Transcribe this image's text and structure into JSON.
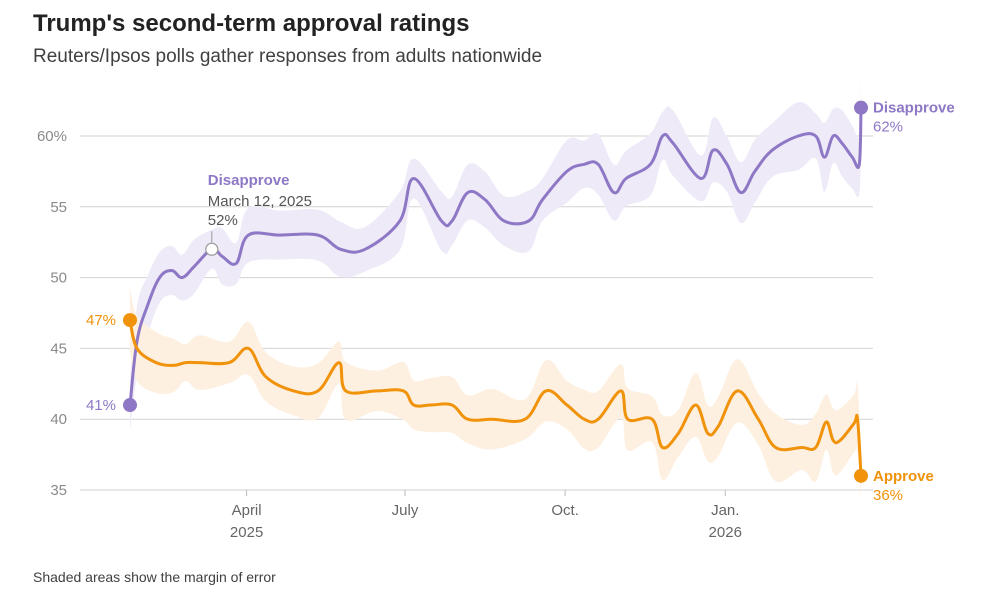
{
  "header": {
    "title": "Trump's second-term approval ratings",
    "subtitle": "Reuters/Ipsos polls gather responses from adults nationwide"
  },
  "footnote": "Shaded areas show the margin of error",
  "chart_data": {
    "type": "line",
    "title": "Trump's second-term approval ratings",
    "subtitle": "Reuters/Ipsos polls gather responses from adults nationwide",
    "x_range": [
      "2025-01-24",
      "2026-03-20"
    ],
    "ylim": [
      35,
      62
    ],
    "y_ticks": [
      {
        "value": 60,
        "label": "60%"
      },
      {
        "value": 55,
        "label": "55"
      },
      {
        "value": 50,
        "label": "50"
      },
      {
        "value": 45,
        "label": "45"
      },
      {
        "value": 40,
        "label": "40"
      },
      {
        "value": 35,
        "label": "35"
      }
    ],
    "x_ticks": [
      {
        "date": "2025-04-01",
        "label": "April",
        "sublabel": "2025"
      },
      {
        "date": "2025-07-01",
        "label": "July",
        "sublabel": ""
      },
      {
        "date": "2025-10-01",
        "label": "Oct.",
        "sublabel": ""
      },
      {
        "date": "2026-01-01",
        "label": "Jan.",
        "sublabel": "2026"
      }
    ],
    "grid": true,
    "legend": "direct labels at line ends",
    "series": [
      {
        "name": "Disapprove",
        "color": "#8E78C6",
        "band_color": "#EEEAF8",
        "points": [
          [
            "2025-01-24",
            41
          ],
          [
            "2025-01-28",
            45.5
          ],
          [
            "2025-02-03",
            48
          ],
          [
            "2025-02-10",
            50
          ],
          [
            "2025-02-17",
            50.5
          ],
          [
            "2025-02-23",
            50
          ],
          [
            "2025-03-02",
            50.8
          ],
          [
            "2025-03-12",
            52
          ],
          [
            "2025-03-18",
            51.5
          ],
          [
            "2025-03-26",
            51
          ],
          [
            "2025-04-02",
            53
          ],
          [
            "2025-04-20",
            53
          ],
          [
            "2025-05-12",
            53
          ],
          [
            "2025-05-25",
            52
          ],
          [
            "2025-06-08",
            52
          ],
          [
            "2025-06-28",
            54
          ],
          [
            "2025-07-06",
            57
          ],
          [
            "2025-07-22",
            54
          ],
          [
            "2025-07-28",
            54
          ],
          [
            "2025-08-06",
            56
          ],
          [
            "2025-08-16",
            55.5
          ],
          [
            "2025-08-27",
            54
          ],
          [
            "2025-09-10",
            54
          ],
          [
            "2025-09-18",
            55.5
          ],
          [
            "2025-10-02",
            57.5
          ],
          [
            "2025-10-12",
            58
          ],
          [
            "2025-10-20",
            58
          ],
          [
            "2025-10-29",
            56
          ],
          [
            "2025-11-05",
            57
          ],
          [
            "2025-11-19",
            58
          ],
          [
            "2025-11-26",
            60
          ],
          [
            "2025-12-02",
            59.5
          ],
          [
            "2025-12-18",
            57
          ],
          [
            "2025-12-25",
            59
          ],
          [
            "2026-01-02",
            58
          ],
          [
            "2026-01-10",
            56
          ],
          [
            "2026-01-18",
            57.5
          ],
          [
            "2026-01-28",
            59
          ],
          [
            "2026-02-12",
            60
          ],
          [
            "2026-02-22",
            60
          ],
          [
            "2026-02-27",
            58.5
          ],
          [
            "2026-03-04",
            60
          ],
          [
            "2026-03-09",
            59.5
          ],
          [
            "2026-03-15",
            58.5
          ],
          [
            "2026-03-19",
            58
          ],
          [
            "2026-03-20",
            62
          ]
        ],
        "annotations": [
          {
            "date": "2025-03-12",
            "value": 52,
            "label": "Disapprove",
            "date_label": "March 12, 2025",
            "value_label": "52%"
          }
        ],
        "start_label": "41%",
        "end_label": "Disapprove",
        "end_value_label": "62%"
      },
      {
        "name": "Approve",
        "color": "#F0920A",
        "band_color": "#FDF0E0",
        "points": [
          [
            "2025-01-24",
            47
          ],
          [
            "2025-01-28",
            45
          ],
          [
            "2025-02-08",
            44
          ],
          [
            "2025-02-18",
            43.8
          ],
          [
            "2025-02-25",
            44
          ],
          [
            "2025-03-05",
            44
          ],
          [
            "2025-03-22",
            44
          ],
          [
            "2025-04-02",
            45
          ],
          [
            "2025-04-12",
            43
          ],
          [
            "2025-04-28",
            42
          ],
          [
            "2025-05-12",
            42
          ],
          [
            "2025-05-24",
            44
          ],
          [
            "2025-05-28",
            42
          ],
          [
            "2025-06-15",
            42
          ],
          [
            "2025-06-30",
            42
          ],
          [
            "2025-07-06",
            41
          ],
          [
            "2025-07-16",
            41
          ],
          [
            "2025-07-28",
            41
          ],
          [
            "2025-08-06",
            40
          ],
          [
            "2025-08-20",
            40
          ],
          [
            "2025-09-08",
            40
          ],
          [
            "2025-09-20",
            42
          ],
          [
            "2025-10-02",
            41
          ],
          [
            "2025-10-12",
            40
          ],
          [
            "2025-10-20",
            40
          ],
          [
            "2025-11-02",
            42
          ],
          [
            "2025-11-06",
            40
          ],
          [
            "2025-11-20",
            40
          ],
          [
            "2025-11-26",
            38
          ],
          [
            "2025-12-05",
            39
          ],
          [
            "2025-12-15",
            41
          ],
          [
            "2025-12-22",
            39
          ],
          [
            "2025-12-28",
            39.5
          ],
          [
            "2026-01-08",
            42
          ],
          [
            "2026-01-20",
            40
          ],
          [
            "2026-01-30",
            38
          ],
          [
            "2026-02-14",
            38
          ],
          [
            "2026-02-22",
            38
          ],
          [
            "2026-02-28",
            39.8
          ],
          [
            "2026-03-04",
            38.5
          ],
          [
            "2026-03-08",
            38.5
          ],
          [
            "2026-03-16",
            39.7
          ],
          [
            "2026-03-18",
            40
          ],
          [
            "2026-03-20",
            36
          ]
        ],
        "start_label": "47%",
        "end_label": "Approve",
        "end_value_label": "36%"
      }
    ]
  }
}
